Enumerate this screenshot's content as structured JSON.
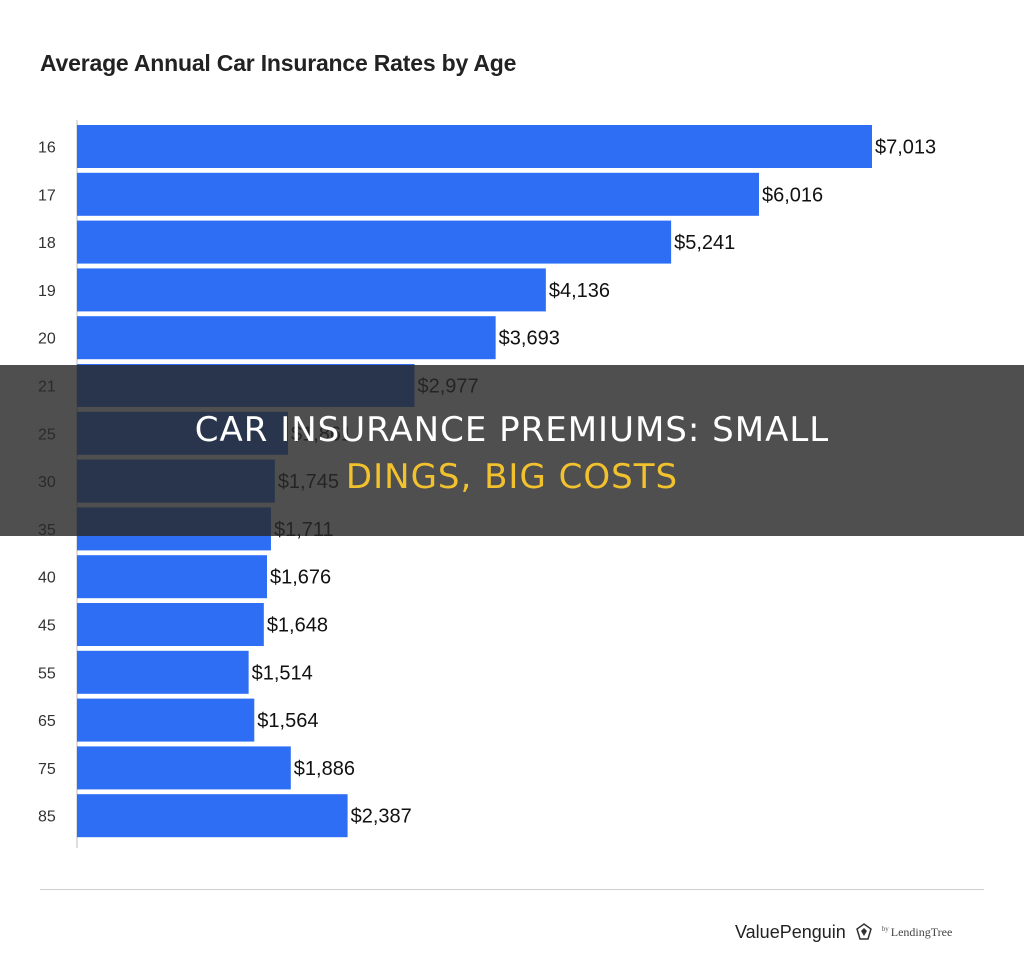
{
  "chart_data": {
    "type": "bar",
    "orientation": "horizontal",
    "title": "Average Annual Car Insurance Rates by Age",
    "categories": [
      "16",
      "17",
      "18",
      "19",
      "20",
      "21",
      "25",
      "30",
      "35",
      "40",
      "45",
      "55",
      "65",
      "75",
      "85"
    ],
    "values": [
      7013,
      6016,
      5241,
      4136,
      3693,
      2977,
      1861,
      1745,
      1711,
      1676,
      1648,
      1514,
      1564,
      1886,
      2387
    ],
    "value_labels": [
      "$7,013",
      "$6,016",
      "$5,241",
      "$4,136",
      "$3,693",
      "$2,977",
      "$1,861",
      "$1,745",
      "$1,711",
      "$1,676",
      "$1,648",
      "$1,514",
      "$1,564",
      "$1,886",
      "$2,387"
    ],
    "xlim": [
      0,
      7013
    ],
    "grid": false,
    "bar_color": "#2d6ef5",
    "xlabel": "",
    "ylabel": ""
  },
  "overlay": {
    "line1": "CAR INSURANCE PREMIUMS: SMALL",
    "line2": "DINGS, BIG COSTS",
    "line1_color": "#ffffff",
    "line2_color": "#f2c12e"
  },
  "brand": {
    "name": "ValuePenguin",
    "by": "by",
    "partner": "LendingTree",
    "icon": "penguin-logo-icon"
  }
}
